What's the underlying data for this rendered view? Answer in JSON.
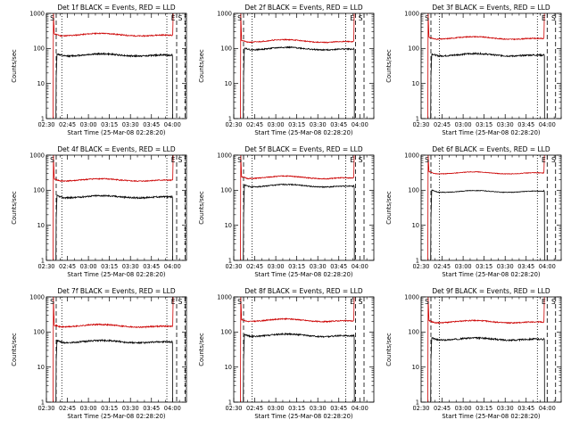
{
  "figure": {
    "description_labels": {
      "x_label": "Start Time (25-Mar-08 02:28:20)",
      "y_label": "Counts/sec"
    }
  },
  "chart_data": [
    {
      "type": "line",
      "title": "Det 1f BLACK = Events, RED = LLD",
      "xlabel": "Start Time (25-Mar-08 02:28:20)",
      "ylabel": "Counts/sec",
      "x_ticks": [
        "02:30",
        "02:45",
        "03:00",
        "03:15",
        "03:30",
        "03:45",
        "04:00"
      ],
      "y_ticks": [
        "1",
        "10",
        "100",
        "1000"
      ],
      "yscale": "log",
      "ylim": [
        1,
        1000
      ],
      "xlim_min": [
        150,
        250
      ],
      "markers": {
        "S": 152,
        "E": 239,
        "S2": 244
      },
      "dotted_x_min": [
        161,
        236
      ],
      "dashed_x_min": [
        157,
        243,
        249
      ],
      "series": [
        {
          "name": "LLD",
          "color": "#cc0000",
          "start_min": 155,
          "end_min": 240.5,
          "base": 230,
          "spike": 1000,
          "noise": 0.035,
          "bump": 0.12,
          "seed": 11
        },
        {
          "name": "Events",
          "color": "#000000",
          "start_min": 157,
          "end_min": 240,
          "base": 62,
          "spike": 15,
          "noise": 0.05,
          "bump": 0.08,
          "seed": 12
        }
      ]
    },
    {
      "type": "line",
      "title": "Det 2f BLACK = Events, RED = LLD",
      "xlabel": "Start Time (25-Mar-08 02:28:20)",
      "ylabel": "Counts/sec",
      "x_ticks": [
        "02:30",
        "02:45",
        "03:00",
        "03:15",
        "03:30",
        "03:45",
        "04:00"
      ],
      "y_ticks": [
        "1",
        "10",
        "100",
        "1000"
      ],
      "yscale": "log",
      "ylim": [
        1,
        1000
      ],
      "xlim_min": [
        150,
        250
      ],
      "markers": {
        "S": 152,
        "E": 233,
        "S2": 239
      },
      "dotted_x_min": [
        163,
        230
      ],
      "dashed_x_min": [
        157,
        237,
        243
      ],
      "series": [
        {
          "name": "LLD",
          "color": "#cc0000",
          "start_min": 155,
          "end_min": 236,
          "base": 150,
          "spike": 1000,
          "noise": 0.03,
          "bump": 0.14,
          "seed": 21
        },
        {
          "name": "Events",
          "color": "#000000",
          "start_min": 157,
          "end_min": 236,
          "base": 92,
          "spike": 15,
          "noise": 0.04,
          "bump": 0.12,
          "seed": 22
        }
      ]
    },
    {
      "type": "line",
      "title": "Det 3f BLACK = Events, RED = LLD",
      "xlabel": "Start Time (25-Mar-08 02:28:20)",
      "ylabel": "Counts/sec",
      "x_ticks": [
        "02:30",
        "02:45",
        "03:00",
        "03:15",
        "03:30",
        "03:45",
        "04:00"
      ],
      "y_ticks": [
        "1",
        "10",
        "100",
        "1000"
      ],
      "yscale": "log",
      "ylim": [
        1,
        1000
      ],
      "xlim_min": [
        150,
        250
      ],
      "markers": {
        "S": 152,
        "E": 236,
        "S2": 243
      },
      "dotted_x_min": [
        163,
        233
      ],
      "dashed_x_min": [
        157,
        240,
        246
      ],
      "series": [
        {
          "name": "LLD",
          "color": "#cc0000",
          "start_min": 155,
          "end_min": 238,
          "base": 185,
          "spike": 1000,
          "noise": 0.03,
          "bump": 0.12,
          "seed": 31
        },
        {
          "name": "Events",
          "color": "#000000",
          "start_min": 157,
          "end_min": 238,
          "base": 62,
          "spike": 15,
          "noise": 0.05,
          "bump": 0.1,
          "seed": 32
        }
      ]
    },
    {
      "type": "line",
      "title": "Det 4f BLACK = Events, RED = LLD",
      "xlabel": "Start Time (25-Mar-08 02:28:20)",
      "ylabel": "Counts/sec",
      "x_ticks": [
        "02:30",
        "02:45",
        "03:00",
        "03:15",
        "03:30",
        "03:45",
        "04:00"
      ],
      "y_ticks": [
        "1",
        "10",
        "100",
        "1000"
      ],
      "yscale": "log",
      "ylim": [
        1,
        1000
      ],
      "xlim_min": [
        150,
        250
      ],
      "markers": {
        "S": 152,
        "E": 239,
        "S2": 244
      },
      "dotted_x_min": [
        161,
        236
      ],
      "dashed_x_min": [
        157,
        243,
        249
      ],
      "series": [
        {
          "name": "LLD",
          "color": "#cc0000",
          "start_min": 155,
          "end_min": 240.5,
          "base": 185,
          "spike": 1000,
          "noise": 0.035,
          "bump": 0.1,
          "seed": 41
        },
        {
          "name": "Events",
          "color": "#000000",
          "start_min": 157,
          "end_min": 240,
          "base": 62,
          "spike": 15,
          "noise": 0.05,
          "bump": 0.08,
          "seed": 42
        }
      ]
    },
    {
      "type": "line",
      "title": "Det 5f BLACK = Events, RED = LLD",
      "xlabel": "Start Time (25-Mar-08 02:28:20)",
      "ylabel": "Counts/sec",
      "x_ticks": [
        "02:30",
        "02:45",
        "03:00",
        "03:15",
        "03:30",
        "03:45",
        "04:00"
      ],
      "y_ticks": [
        "1",
        "10",
        "100",
        "1000"
      ],
      "yscale": "log",
      "ylim": [
        1,
        1000
      ],
      "xlim_min": [
        150,
        250
      ],
      "markers": {
        "S": 152,
        "E": 233,
        "S2": 239
      },
      "dotted_x_min": [
        163,
        230
      ],
      "dashed_x_min": [
        157,
        237,
        243
      ],
      "series": [
        {
          "name": "LLD",
          "color": "#cc0000",
          "start_min": 155,
          "end_min": 236,
          "base": 215,
          "spike": 1000,
          "noise": 0.03,
          "bump": 0.13,
          "seed": 51
        },
        {
          "name": "Events",
          "color": "#000000",
          "start_min": 157,
          "end_min": 236,
          "base": 125,
          "spike": 15,
          "noise": 0.035,
          "bump": 0.12,
          "seed": 52
        }
      ]
    },
    {
      "type": "line",
      "title": "Det 6f BLACK = Events, RED = LLD",
      "xlabel": "Start Time (25-Mar-08 02:28:20)",
      "ylabel": "Counts/sec",
      "x_ticks": [
        "02:30",
        "02:45",
        "03:00",
        "03:15",
        "03:30",
        "03:45",
        "04:00"
      ],
      "y_ticks": [
        "1",
        "10",
        "100",
        "1000"
      ],
      "yscale": "log",
      "ylim": [
        1,
        1000
      ],
      "xlim_min": [
        150,
        250
      ],
      "markers": {
        "S": 152,
        "E": 236,
        "S2": 243
      },
      "dotted_x_min": [
        163,
        233
      ],
      "dashed_x_min": [
        157,
        240,
        246
      ],
      "series": [
        {
          "name": "LLD",
          "color": "#cc0000",
          "start_min": 155,
          "end_min": 238,
          "base": 300,
          "spike": 1000,
          "noise": 0.02,
          "bump": 0.06,
          "seed": 61
        },
        {
          "name": "Events",
          "color": "#000000",
          "start_min": 157,
          "end_min": 238,
          "base": 90,
          "spike": 15,
          "noise": 0.02,
          "bump": 0.04,
          "seed": 62
        }
      ]
    },
    {
      "type": "line",
      "title": "Det 7f BLACK = Events, RED = LLD",
      "xlabel": "Start Time (25-Mar-08 02:28:20)",
      "ylabel": "Counts/sec",
      "x_ticks": [
        "02:30",
        "02:45",
        "03:00",
        "03:15",
        "03:30",
        "03:45",
        "04:00"
      ],
      "y_ticks": [
        "1",
        "10",
        "100",
        "1000"
      ],
      "yscale": "log",
      "ylim": [
        1,
        1000
      ],
      "xlim_min": [
        150,
        250
      ],
      "markers": {
        "S": 152,
        "E": 239,
        "S2": 244
      },
      "dotted_x_min": [
        161,
        236
      ],
      "dashed_x_min": [
        157,
        243,
        249
      ],
      "series": [
        {
          "name": "LLD",
          "color": "#cc0000",
          "start_min": 155,
          "end_min": 240.5,
          "base": 140,
          "spike": 1000,
          "noise": 0.04,
          "bump": 0.12,
          "seed": 71
        },
        {
          "name": "Events",
          "color": "#000000",
          "start_min": 157,
          "end_min": 240,
          "base": 50,
          "spike": 15,
          "noise": 0.05,
          "bump": 0.1,
          "seed": 72
        }
      ]
    },
    {
      "type": "line",
      "title": "Det 8f BLACK = Events, RED = LLD",
      "xlabel": "Start Time (25-Mar-08 02:28:20)",
      "ylabel": "Counts/sec",
      "x_ticks": [
        "02:30",
        "02:45",
        "03:00",
        "03:15",
        "03:30",
        "03:45",
        "04:00"
      ],
      "y_ticks": [
        "1",
        "10",
        "100",
        "1000"
      ],
      "yscale": "log",
      "ylim": [
        1,
        1000
      ],
      "xlim_min": [
        150,
        250
      ],
      "markers": {
        "S": 152,
        "E": 233,
        "S2": 239
      },
      "dotted_x_min": [
        163,
        230
      ],
      "dashed_x_min": [
        157,
        237,
        243
      ],
      "series": [
        {
          "name": "LLD",
          "color": "#cc0000",
          "start_min": 155,
          "end_min": 236,
          "base": 200,
          "spike": 1000,
          "noise": 0.035,
          "bump": 0.13,
          "seed": 81
        },
        {
          "name": "Events",
          "color": "#000000",
          "start_min": 157,
          "end_min": 236,
          "base": 75,
          "spike": 15,
          "noise": 0.045,
          "bump": 0.12,
          "seed": 82
        }
      ]
    },
    {
      "type": "line",
      "title": "Det 9f BLACK = Events, RED = LLD",
      "xlabel": "Start Time (25-Mar-08 02:28:20)",
      "ylabel": "Counts/sec",
      "x_ticks": [
        "02:30",
        "02:45",
        "03:00",
        "03:15",
        "03:30",
        "03:45",
        "04:00"
      ],
      "y_ticks": [
        "1",
        "10",
        "100",
        "1000"
      ],
      "yscale": "log",
      "ylim": [
        1,
        1000
      ],
      "xlim_min": [
        150,
        250
      ],
      "markers": {
        "S": 152,
        "E": 236,
        "S2": 243
      },
      "dotted_x_min": [
        163,
        233
      ],
      "dashed_x_min": [
        157,
        240,
        246
      ],
      "series": [
        {
          "name": "LLD",
          "color": "#cc0000",
          "start_min": 155,
          "end_min": 238,
          "base": 185,
          "spike": 1000,
          "noise": 0.035,
          "bump": 0.1,
          "seed": 91
        },
        {
          "name": "Events",
          "color": "#000000",
          "start_min": 157,
          "end_min": 238,
          "base": 60,
          "spike": 15,
          "noise": 0.05,
          "bump": 0.08,
          "seed": 92
        }
      ]
    }
  ]
}
